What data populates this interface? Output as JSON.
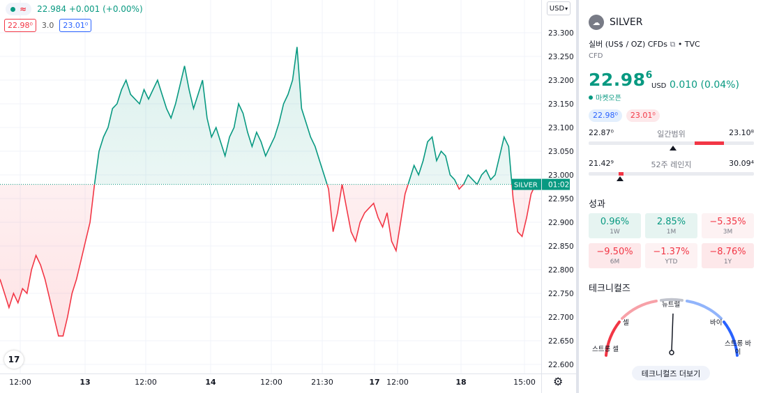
{
  "legend": {
    "dot_icon": "status-dot-icon",
    "wave_icon": "approx-icon",
    "price_text": "22.984 +0.001 (+0.00%)"
  },
  "bidask": {
    "bid": "22.98⁰",
    "spread": "3.0",
    "ask": "23.01⁰"
  },
  "currency_button": "USD",
  "logo_text": "17",
  "price_label": "SILVER",
  "countdown": "01:02",
  "colors": {
    "up": "#089981",
    "down": "#f23645",
    "blue": "#2962ff"
  },
  "chart_data": {
    "type": "area",
    "baseline": 22.98,
    "ylim": [
      22.58,
      23.32
    ],
    "y_ticks": [
      "23.300",
      "23.250",
      "23.200",
      "23.150",
      "23.100",
      "23.050",
      "23.000",
      "22.950",
      "22.900",
      "22.850",
      "22.800",
      "22.750",
      "22.700",
      "22.650",
      "22.600"
    ],
    "x_ticks": [
      "12:00",
      "13",
      "12:00",
      "14",
      "12:00",
      "21:30",
      "17",
      "12:00",
      "18",
      "15:00"
    ],
    "series": [
      {
        "values": [
          22.78,
          22.75,
          22.72,
          22.75,
          22.73,
          22.76,
          22.75,
          22.8,
          22.83,
          22.81,
          22.78,
          22.74,
          22.7,
          22.66,
          22.66,
          22.7,
          22.75,
          22.78,
          22.82,
          22.86,
          22.9,
          22.98,
          23.05,
          23.08,
          23.1,
          23.14,
          23.15,
          23.18,
          23.2,
          23.17,
          23.16,
          23.15,
          23.18,
          23.16,
          23.18,
          23.2,
          23.17,
          23.14,
          23.12,
          23.15,
          23.19,
          23.23,
          23.18,
          23.14,
          23.17,
          23.2,
          23.12,
          23.08,
          23.1,
          23.07,
          23.04,
          23.08,
          23.1,
          23.15,
          23.13,
          23.09,
          23.06,
          23.09,
          23.07,
          23.04,
          23.06,
          23.08,
          23.11,
          23.15,
          23.17,
          23.2,
          23.27,
          23.14,
          23.11,
          23.08,
          23.06,
          23.03,
          23.0,
          22.97,
          22.88,
          22.92,
          22.98,
          22.93,
          22.88,
          22.86,
          22.9,
          22.92,
          22.93,
          22.94,
          22.91,
          22.89,
          22.92,
          22.86,
          22.84,
          22.9,
          22.96,
          22.99,
          23.02,
          23.0,
          23.03,
          23.07,
          23.08,
          23.03,
          23.05,
          23.04,
          23.0,
          22.99,
          22.97,
          22.98,
          23.0,
          22.99,
          22.98,
          23.0,
          23.01,
          22.99,
          23.0,
          23.04,
          23.08,
          23.06,
          22.95,
          22.88,
          22.87,
          22.91,
          22.96,
          22.98
        ]
      }
    ]
  },
  "side": {
    "symbol": "SILVER",
    "description": "실버 (US$ / OZ) CFDs",
    "source": "• TVC",
    "type": "CFD",
    "price_main": "22.98",
    "price_sup": "6",
    "price_currency": "USD",
    "change": "0.010 (0.04%)",
    "market_status": "마켓오픈",
    "bid_chip": "22.98⁰",
    "ask_chip": "23.01⁰",
    "day_range": {
      "low": "22.87⁰",
      "label": "일간범위",
      "high": "23.10⁸",
      "fill_from": 0.64,
      "fill_to": 0.82,
      "pointer": 0.51
    },
    "year_range": {
      "low": "21.42⁹",
      "label": "52주 레인지",
      "high": "30.09⁴",
      "fill_from": 0.18,
      "fill_to": 0.21,
      "pointer": 0.19
    },
    "performance_title": "성과",
    "performance": [
      {
        "value": "0.96%",
        "period": "1W",
        "tone": "pos"
      },
      {
        "value": "2.85%",
        "period": "1M",
        "tone": "pos"
      },
      {
        "value": "−5.35%",
        "period": "3M",
        "tone": "neg-light"
      },
      {
        "value": "−9.50%",
        "period": "6M",
        "tone": "neg"
      },
      {
        "value": "−1.37%",
        "period": "YTD",
        "tone": "neg-light"
      },
      {
        "value": "−8.76%",
        "period": "1Y",
        "tone": "neg"
      }
    ],
    "technicals_title": "테크니컬즈",
    "gauge": {
      "neutral": "뉴트럴",
      "sell": "셀",
      "buy": "바이",
      "strong_sell": "스트롱 셀",
      "strong_buy": "스트롱 바이",
      "needle": 0.5
    },
    "technicals_button": "테크니컬즈 더보기"
  }
}
